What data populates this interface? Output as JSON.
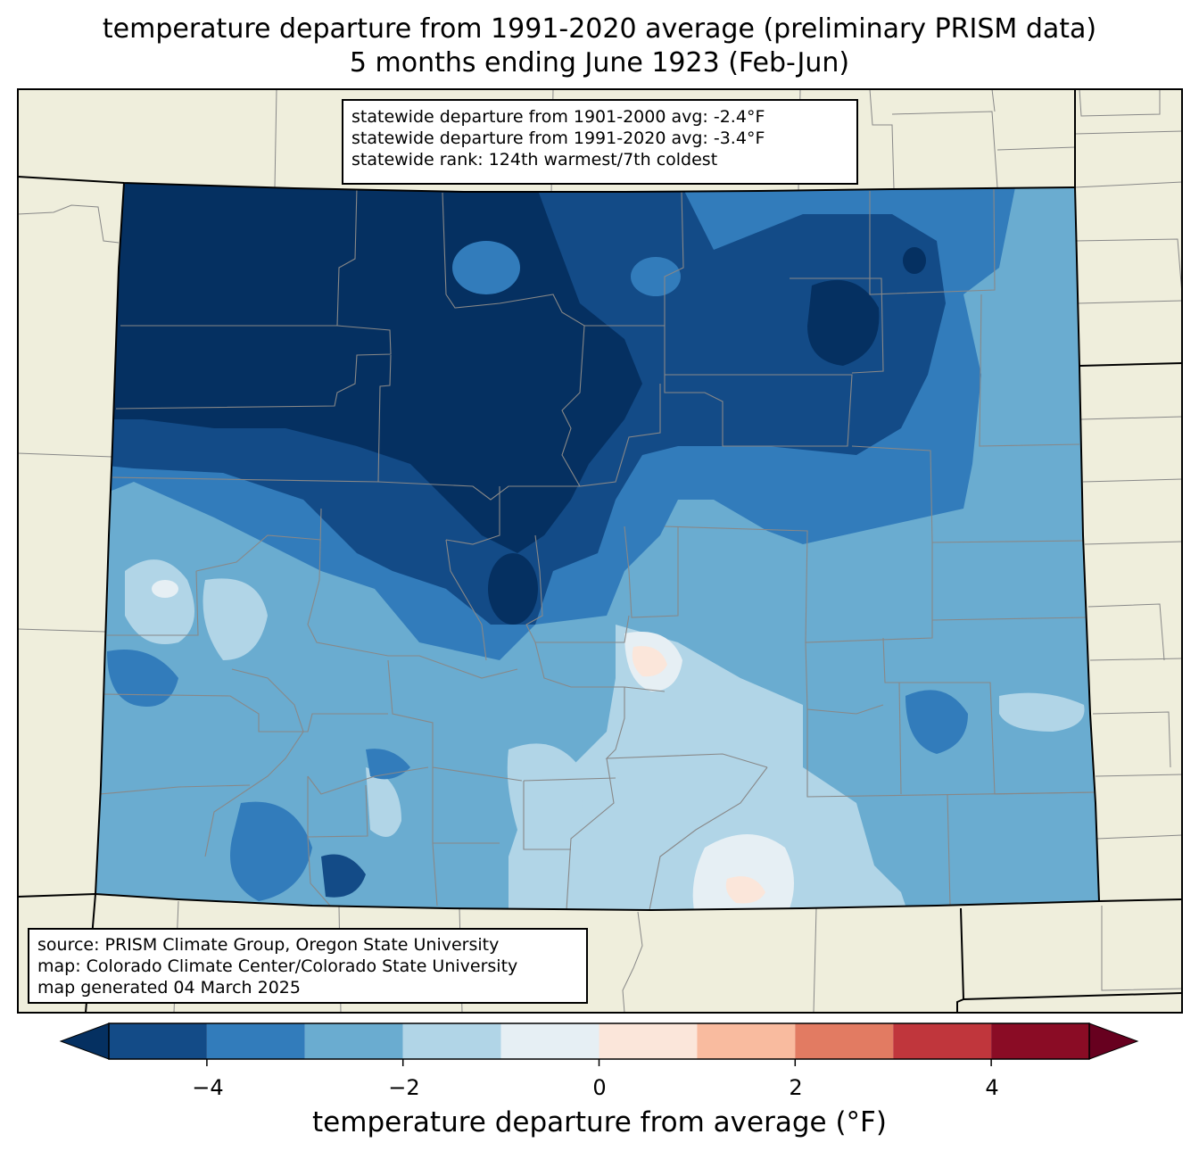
{
  "title": {
    "line1": "temperature departure from 1991-2020 average (preliminary PRISM data)",
    "line2": "5 months ending June 1923 (Feb-Jun)"
  },
  "stats": {
    "line1": "statewide departure from 1901-2000 avg: -2.4°F",
    "line2": "statewide departure from 1991-2020 avg: -3.4°F",
    "line3": "statewide rank: 124th warmest/7th coldest"
  },
  "source": {
    "line1": "source: PRISM Climate Group, Oregon State University",
    "line2": "map: Colorado Climate Center/Colorado State University",
    "line3": "map generated 04 March 2025"
  },
  "colorbar": {
    "label": "temperature departure from average (°F)",
    "ticks": [
      "−4",
      "−2",
      "0",
      "2",
      "4"
    ],
    "bins": [
      -5,
      -4,
      -3,
      -2,
      -1,
      0,
      1,
      2,
      3,
      4,
      5
    ],
    "colors": [
      "#134b87",
      "#327cbb",
      "#6aacd0",
      "#b1d5e7",
      "#e6eff4",
      "#fbe6da",
      "#f9bb9f",
      "#e27b62",
      "#c0363c",
      "#8a0c25"
    ],
    "under_color": "#053061",
    "over_color": "#67001f"
  },
  "map": {
    "land_color": "#efeedc",
    "region": "Colorado"
  }
}
